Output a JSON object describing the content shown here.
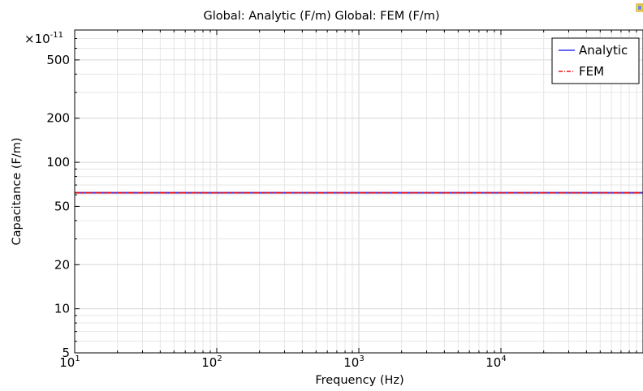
{
  "chart_data": {
    "type": "line",
    "title": "Global: Analytic (F/m)  Global: FEM (F/m)",
    "xlabel": "Frequency (Hz)",
    "ylabel": "Capacitance (F/m)",
    "y_multiplier_base": "×10",
    "y_multiplier_exp": "-11",
    "xscale": "log",
    "yscale": "log",
    "xlim": [
      10,
      100000
    ],
    "ylim": [
      5,
      800
    ],
    "grid": true,
    "legend_position": "top-right",
    "x_ticks": [
      {
        "value": 10,
        "base": "10",
        "exp": "1"
      },
      {
        "value": 100,
        "base": "10",
        "exp": "2"
      },
      {
        "value": 1000,
        "base": "10",
        "exp": "3"
      },
      {
        "value": 10000,
        "base": "10",
        "exp": "4"
      }
    ],
    "y_ticks": [
      {
        "value": 5,
        "label": "5"
      },
      {
        "value": 10,
        "label": "10"
      },
      {
        "value": 20,
        "label": "20"
      },
      {
        "value": 50,
        "label": "50"
      },
      {
        "value": 100,
        "label": "100"
      },
      {
        "value": 200,
        "label": "200"
      },
      {
        "value": 500,
        "label": "500"
      }
    ],
    "series": [
      {
        "name": "Analytic",
        "color": "#3333ee",
        "style": "solid",
        "x": [
          10,
          100000
        ],
        "y": [
          62,
          62
        ]
      },
      {
        "name": "FEM",
        "color": "#ee1111",
        "style": "dash-dot",
        "x": [
          10,
          100000
        ],
        "y": [
          62,
          62
        ]
      }
    ]
  }
}
